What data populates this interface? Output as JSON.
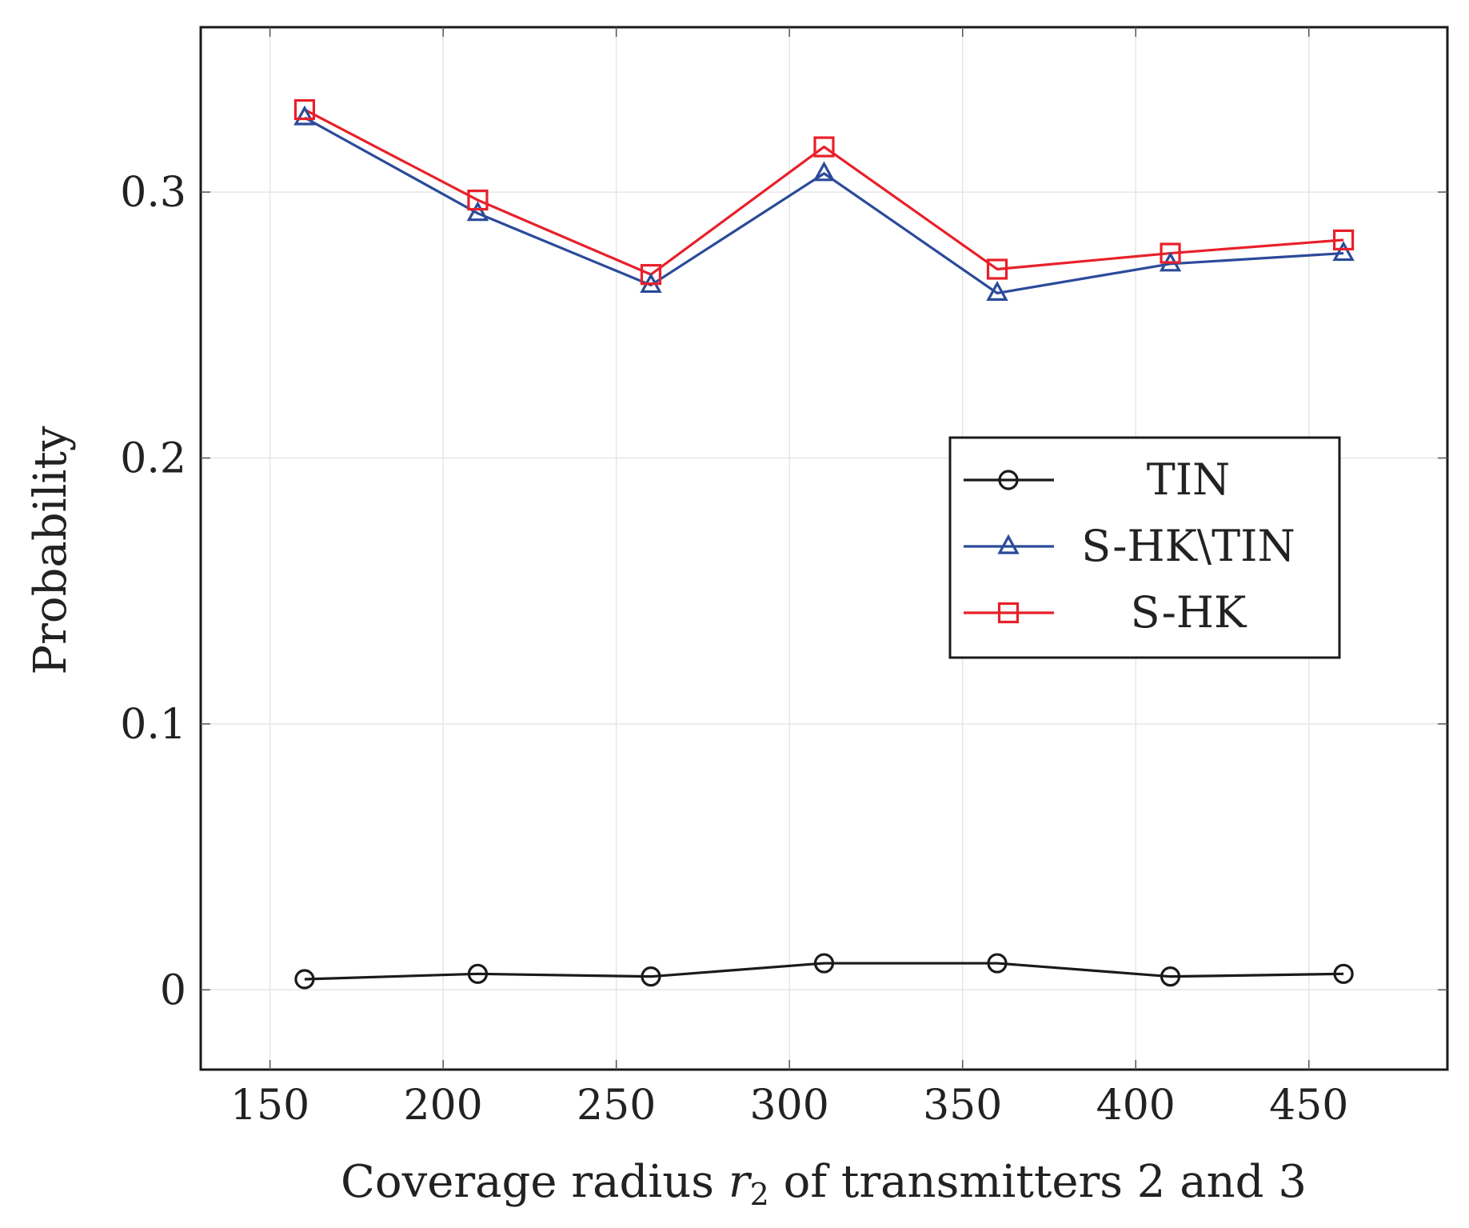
{
  "chart_data": {
    "type": "line",
    "title": "",
    "xlabel": "Coverage radius r2 of transmitters 2 and 3",
    "xlabel_parts": {
      "before": "Coverage radius ",
      "var": "r",
      "sub": "2",
      "after": " of transmitters 2 and 3"
    },
    "ylabel": "Probability",
    "xlim": [
      130,
      490
    ],
    "ylim": [
      -0.03,
      0.362
    ],
    "xticks": [
      150,
      200,
      250,
      300,
      350,
      400,
      450
    ],
    "yticks": [
      0,
      0.1,
      0.2,
      0.3
    ],
    "xtick_labels": [
      "150",
      "200",
      "250",
      "300",
      "350",
      "400",
      "450"
    ],
    "ytick_labels": [
      "0",
      "0.1",
      "0.2",
      "0.3"
    ],
    "grid": true,
    "legend_position": "center-right",
    "x": [
      160,
      210,
      260,
      310,
      360,
      410,
      460
    ],
    "series": [
      {
        "name": "TIN",
        "color": "#1a1a1a",
        "marker": "circle",
        "values": [
          0.004,
          0.006,
          0.005,
          0.01,
          0.01,
          0.005,
          0.006
        ]
      },
      {
        "name": "S-HK\\TIN",
        "color": "#2b4a9a",
        "marker": "triangle",
        "values": [
          0.328,
          0.292,
          0.265,
          0.307,
          0.262,
          0.273,
          0.277
        ]
      },
      {
        "name": "S-HK",
        "color": "#e8202a",
        "marker": "square",
        "values": [
          0.331,
          0.297,
          0.269,
          0.317,
          0.271,
          0.277,
          0.282
        ]
      }
    ]
  }
}
